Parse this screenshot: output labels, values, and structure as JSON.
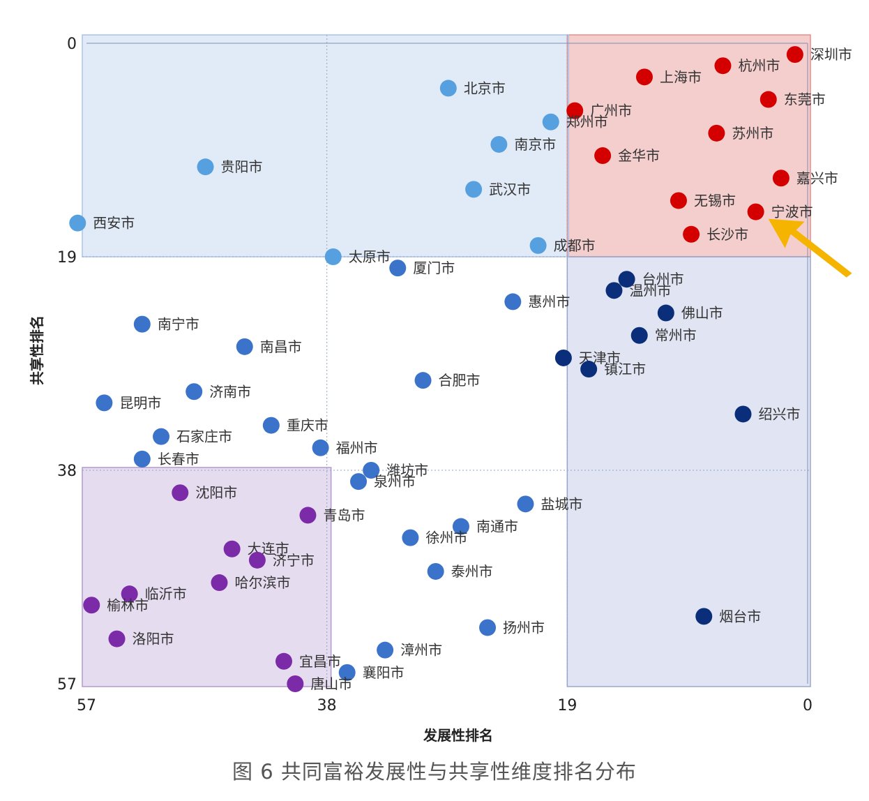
{
  "chart_data": {
    "type": "scatter",
    "title": "",
    "xlabel": "发展性排名",
    "ylabel": "共享性排名",
    "xlim": [
      57,
      0
    ],
    "ylim": [
      0,
      57
    ],
    "x_ticks": [
      "57",
      "38",
      "19",
      "0"
    ],
    "y_ticks": [
      "0",
      "19",
      "38",
      "57"
    ],
    "quadrant_divider": {
      "x": 19,
      "y": 19,
      "x2": 38,
      "y2": 38
    },
    "highlight_regions": [
      {
        "name": "top-right",
        "color": "#f2c4c4"
      },
      {
        "name": "top-band",
        "color": "#dce7f7"
      },
      {
        "name": "right-band",
        "color": "#dcdff0"
      },
      {
        "name": "bottom-left",
        "color": "#e2d6ec"
      }
    ],
    "colors": {
      "red": "#d40000",
      "light_blue": "#56a0e0",
      "mid_blue": "#3a73c9",
      "navy": "#0b2e7a",
      "purple": "#7b2aa8",
      "arrow": "#f5b400"
    },
    "points": [
      {
        "label": "深圳市",
        "x": 1.0,
        "y": 1.0,
        "color": "red"
      },
      {
        "label": "杭州市",
        "x": 6.7,
        "y": 2.0,
        "color": "red"
      },
      {
        "label": "上海市",
        "x": 12.9,
        "y": 3.0,
        "color": "red"
      },
      {
        "label": "东莞市",
        "x": 3.1,
        "y": 5.0,
        "color": "red"
      },
      {
        "label": "广州市",
        "x": 18.4,
        "y": 6.0,
        "color": "red"
      },
      {
        "label": "苏州市",
        "x": 7.2,
        "y": 8.0,
        "color": "red"
      },
      {
        "label": "金华市",
        "x": 16.2,
        "y": 10.0,
        "color": "red"
      },
      {
        "label": "嘉兴市",
        "x": 2.1,
        "y": 12.0,
        "color": "red"
      },
      {
        "label": "无锡市",
        "x": 10.2,
        "y": 14.0,
        "color": "red"
      },
      {
        "label": "宁波市",
        "x": 4.1,
        "y": 15.0,
        "color": "red"
      },
      {
        "label": "长沙市",
        "x": 9.2,
        "y": 17.0,
        "color": "red"
      },
      {
        "label": "北京市",
        "x": 28.4,
        "y": 4.0,
        "color": "light_blue"
      },
      {
        "label": "郑州市",
        "x": 20.3,
        "y": 7.0,
        "color": "light_blue"
      },
      {
        "label": "南京市",
        "x": 24.4,
        "y": 9.0,
        "color": "light_blue"
      },
      {
        "label": "贵阳市",
        "x": 47.6,
        "y": 11.0,
        "color": "light_blue"
      },
      {
        "label": "武汉市",
        "x": 26.4,
        "y": 13.0,
        "color": "light_blue"
      },
      {
        "label": "西安市",
        "x": 57.7,
        "y": 16.0,
        "color": "light_blue"
      },
      {
        "label": "成都市",
        "x": 21.3,
        "y": 18.0,
        "color": "light_blue"
      },
      {
        "label": "太原市",
        "x": 37.5,
        "y": 19.0,
        "color": "light_blue"
      },
      {
        "label": "厦门市",
        "x": 32.4,
        "y": 20.0,
        "color": "mid_blue"
      },
      {
        "label": "惠州市",
        "x": 23.3,
        "y": 23.0,
        "color": "mid_blue"
      },
      {
        "label": "南宁市",
        "x": 52.6,
        "y": 25.0,
        "color": "mid_blue"
      },
      {
        "label": "南昌市",
        "x": 44.5,
        "y": 27.0,
        "color": "mid_blue"
      },
      {
        "label": "合肥市",
        "x": 30.4,
        "y": 30.0,
        "color": "mid_blue"
      },
      {
        "label": "济南市",
        "x": 48.5,
        "y": 31.0,
        "color": "mid_blue"
      },
      {
        "label": "昆明市",
        "x": 55.6,
        "y": 32.0,
        "color": "mid_blue"
      },
      {
        "label": "重庆市",
        "x": 42.4,
        "y": 34.0,
        "color": "mid_blue"
      },
      {
        "label": "石家庄市",
        "x": 51.1,
        "y": 35.0,
        "color": "mid_blue"
      },
      {
        "label": "福州市",
        "x": 38.5,
        "y": 36.0,
        "color": "mid_blue"
      },
      {
        "label": "长春市",
        "x": 52.6,
        "y": 37.0,
        "color": "mid_blue"
      },
      {
        "label": "潍坊市",
        "x": 34.5,
        "y": 38.0,
        "color": "mid_blue"
      },
      {
        "label": "泉州市",
        "x": 35.5,
        "y": 39.0,
        "color": "mid_blue"
      },
      {
        "label": "盐城市",
        "x": 22.3,
        "y": 41.0,
        "color": "mid_blue"
      },
      {
        "label": "南通市",
        "x": 27.4,
        "y": 43.0,
        "color": "mid_blue"
      },
      {
        "label": "徐州市",
        "x": 31.4,
        "y": 44.0,
        "color": "mid_blue"
      },
      {
        "label": "泰州市",
        "x": 29.4,
        "y": 47.0,
        "color": "mid_blue"
      },
      {
        "label": "扬州市",
        "x": 25.3,
        "y": 52.0,
        "color": "mid_blue"
      },
      {
        "label": "漳州市",
        "x": 33.4,
        "y": 54.0,
        "color": "mid_blue"
      },
      {
        "label": "襄阳市",
        "x": 36.4,
        "y": 56.0,
        "color": "mid_blue"
      },
      {
        "label": "台州市",
        "x": 14.3,
        "y": 21.0,
        "color": "navy"
      },
      {
        "label": "温州市",
        "x": 15.3,
        "y": 22.0,
        "color": "navy"
      },
      {
        "label": "佛山市",
        "x": 11.2,
        "y": 24.0,
        "color": "navy"
      },
      {
        "label": "常州市",
        "x": 13.3,
        "y": 26.0,
        "color": "navy"
      },
      {
        "label": "天津市",
        "x": 19.3,
        "y": 28.0,
        "color": "navy"
      },
      {
        "label": "镇江市",
        "x": 17.3,
        "y": 29.0,
        "color": "navy"
      },
      {
        "label": "绍兴市",
        "x": 5.1,
        "y": 33.0,
        "color": "navy"
      },
      {
        "label": "烟台市",
        "x": 8.2,
        "y": 51.0,
        "color": "navy"
      },
      {
        "label": "沈阳市",
        "x": 49.6,
        "y": 40.0,
        "color": "purple"
      },
      {
        "label": "青岛市",
        "x": 39.5,
        "y": 42.0,
        "color": "purple"
      },
      {
        "label": "大连市",
        "x": 45.5,
        "y": 45.0,
        "color": "purple"
      },
      {
        "label": "济宁市",
        "x": 43.5,
        "y": 46.0,
        "color": "purple"
      },
      {
        "label": "哈尔滨市",
        "x": 46.5,
        "y": 48.0,
        "color": "purple"
      },
      {
        "label": "临沂市",
        "x": 53.6,
        "y": 49.0,
        "color": "purple"
      },
      {
        "label": "榆林市",
        "x": 56.6,
        "y": 50.0,
        "color": "purple"
      },
      {
        "label": "洛阳市",
        "x": 54.6,
        "y": 53.0,
        "color": "purple"
      },
      {
        "label": "宜昌市",
        "x": 41.4,
        "y": 55.0,
        "color": "purple"
      },
      {
        "label": "唐山市",
        "x": 40.5,
        "y": 57.0,
        "color": "purple"
      }
    ],
    "annotation_arrow": {
      "target": "宁波市",
      "color": "arrow"
    }
  },
  "caption": "图 6 共同富裕发展性与共享性维度排名分布"
}
